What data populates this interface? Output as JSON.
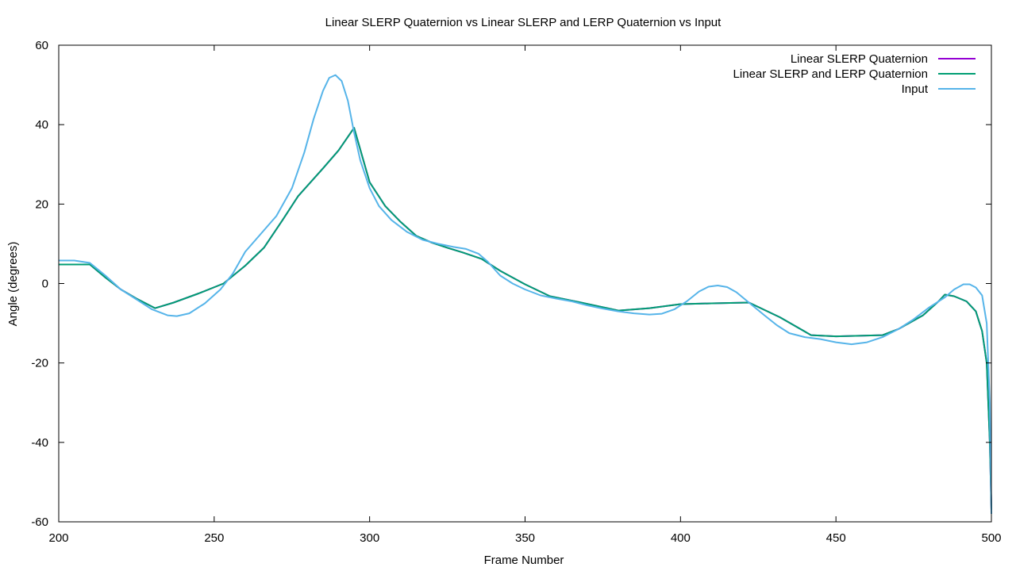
{
  "chart_data": {
    "type": "line",
    "title": "Linear SLERP Quaternion vs Linear SLERP and LERP Quaternion vs Input",
    "xlabel": "Frame Number",
    "ylabel": "Angle (degrees)",
    "xlim": [
      200,
      500
    ],
    "ylim": [
      -60,
      60
    ],
    "xticks": [
      "200",
      "250",
      "300",
      "350",
      "400",
      "450",
      "500"
    ],
    "yticks": [
      "-60",
      "-40",
      "-20",
      "0",
      "20",
      "40",
      "60"
    ],
    "grid": false,
    "legend_position": "top-right",
    "series": [
      {
        "name": "Linear SLERP Quaternion",
        "color": "#9400d3",
        "points": [
          [
            200,
            4.8
          ],
          [
            210,
            4.8
          ],
          [
            215,
            1.5
          ],
          [
            220,
            -1.5
          ],
          [
            225,
            -3.8
          ],
          [
            231,
            -6.2
          ],
          [
            237,
            -4.8
          ],
          [
            245,
            -2.5
          ],
          [
            253,
            0
          ],
          [
            260,
            4.5
          ],
          [
            266,
            9
          ],
          [
            272,
            16
          ],
          [
            277,
            22
          ],
          [
            285,
            29
          ],
          [
            290,
            33.5
          ],
          [
            295,
            39.2
          ],
          [
            300,
            25.5
          ],
          [
            305,
            19.5
          ],
          [
            310,
            15.5
          ],
          [
            315,
            12
          ],
          [
            320,
            10.3
          ],
          [
            325,
            9
          ],
          [
            330,
            7.8
          ],
          [
            336,
            6.2
          ],
          [
            342,
            3.2
          ],
          [
            350,
            -0.2
          ],
          [
            358,
            -3.2
          ],
          [
            368,
            -4.8
          ],
          [
            380,
            -6.8
          ],
          [
            390,
            -6.2
          ],
          [
            400,
            -5.2
          ],
          [
            410,
            -5
          ],
          [
            422,
            -4.8
          ],
          [
            432,
            -8.5
          ],
          [
            442,
            -13
          ],
          [
            450,
            -13.3
          ],
          [
            465,
            -13
          ],
          [
            470,
            -11.5
          ],
          [
            478,
            -8
          ],
          [
            483,
            -4.5
          ],
          [
            485,
            -2.8
          ],
          [
            488,
            -3.2
          ],
          [
            492,
            -4.5
          ],
          [
            495,
            -7
          ],
          [
            497,
            -12
          ],
          [
            498.5,
            -20
          ],
          [
            499.5,
            -40
          ],
          [
            500,
            -57
          ]
        ]
      },
      {
        "name": "Linear SLERP and LERP Quaternion",
        "color": "#009e73",
        "points": [
          [
            200,
            4.8
          ],
          [
            210,
            4.8
          ],
          [
            215,
            1.5
          ],
          [
            220,
            -1.5
          ],
          [
            225,
            -3.8
          ],
          [
            231,
            -6.2
          ],
          [
            237,
            -4.8
          ],
          [
            245,
            -2.5
          ],
          [
            253,
            0
          ],
          [
            260,
            4.5
          ],
          [
            266,
            9
          ],
          [
            272,
            16
          ],
          [
            277,
            22
          ],
          [
            285,
            29
          ],
          [
            290,
            33.5
          ],
          [
            295,
            39.2
          ],
          [
            300,
            25.5
          ],
          [
            305,
            19.5
          ],
          [
            310,
            15.5
          ],
          [
            315,
            12
          ],
          [
            320,
            10.3
          ],
          [
            325,
            9
          ],
          [
            330,
            7.8
          ],
          [
            336,
            6.2
          ],
          [
            342,
            3.2
          ],
          [
            350,
            -0.2
          ],
          [
            358,
            -3.2
          ],
          [
            368,
            -4.8
          ],
          [
            380,
            -6.8
          ],
          [
            390,
            -6.2
          ],
          [
            400,
            -5.2
          ],
          [
            410,
            -5
          ],
          [
            422,
            -4.8
          ],
          [
            432,
            -8.5
          ],
          [
            442,
            -13
          ],
          [
            450,
            -13.3
          ],
          [
            465,
            -13
          ],
          [
            470,
            -11.5
          ],
          [
            478,
            -8
          ],
          [
            483,
            -4.5
          ],
          [
            485,
            -2.8
          ],
          [
            488,
            -3.2
          ],
          [
            492,
            -4.5
          ],
          [
            495,
            -7
          ],
          [
            497,
            -12
          ],
          [
            498.5,
            -20
          ],
          [
            499.5,
            -40
          ],
          [
            500,
            -57
          ]
        ]
      },
      {
        "name": "Input",
        "color": "#56b4e9",
        "points": [
          [
            200,
            5.8
          ],
          [
            205,
            5.8
          ],
          [
            210,
            5.2
          ],
          [
            215,
            2
          ],
          [
            220,
            -1.5
          ],
          [
            225,
            -4
          ],
          [
            230,
            -6.5
          ],
          [
            235,
            -8
          ],
          [
            238,
            -8.2
          ],
          [
            242,
            -7.5
          ],
          [
            247,
            -5
          ],
          [
            252,
            -1.5
          ],
          [
            256,
            2.5
          ],
          [
            260,
            8
          ],
          [
            265,
            12.5
          ],
          [
            270,
            17
          ],
          [
            275,
            24
          ],
          [
            279,
            33
          ],
          [
            282,
            41.5
          ],
          [
            285,
            48.5
          ],
          [
            287,
            51.8
          ],
          [
            289,
            52.5
          ],
          [
            291,
            51
          ],
          [
            293,
            46
          ],
          [
            295,
            38
          ],
          [
            297,
            31
          ],
          [
            300,
            24
          ],
          [
            303,
            19.5
          ],
          [
            307,
            16
          ],
          [
            312,
            13
          ],
          [
            317,
            11
          ],
          [
            322,
            10
          ],
          [
            327,
            9.2
          ],
          [
            331,
            8.7
          ],
          [
            335,
            7.5
          ],
          [
            338,
            5.5
          ],
          [
            342,
            2
          ],
          [
            346,
            0
          ],
          [
            350,
            -1.5
          ],
          [
            355,
            -3
          ],
          [
            360,
            -3.8
          ],
          [
            365,
            -4.5
          ],
          [
            370,
            -5.5
          ],
          [
            375,
            -6.3
          ],
          [
            380,
            -7
          ],
          [
            385,
            -7.5
          ],
          [
            390,
            -7.8
          ],
          [
            394,
            -7.6
          ],
          [
            398,
            -6.5
          ],
          [
            402,
            -4.5
          ],
          [
            406,
            -2
          ],
          [
            409,
            -0.8
          ],
          [
            412,
            -0.5
          ],
          [
            415,
            -0.9
          ],
          [
            418,
            -2.2
          ],
          [
            422,
            -4.8
          ],
          [
            427,
            -8
          ],
          [
            431,
            -10.5
          ],
          [
            435,
            -12.5
          ],
          [
            440,
            -13.5
          ],
          [
            445,
            -14
          ],
          [
            450,
            -14.8
          ],
          [
            455,
            -15.3
          ],
          [
            460,
            -14.8
          ],
          [
            465,
            -13.5
          ],
          [
            470,
            -11.5
          ],
          [
            475,
            -9
          ],
          [
            480,
            -6
          ],
          [
            485,
            -3.5
          ],
          [
            488,
            -1.5
          ],
          [
            491,
            -0.2
          ],
          [
            493,
            -0.2
          ],
          [
            495,
            -1
          ],
          [
            497,
            -3
          ],
          [
            498.5,
            -10
          ],
          [
            499.5,
            -30
          ],
          [
            500,
            -58
          ]
        ]
      }
    ]
  }
}
